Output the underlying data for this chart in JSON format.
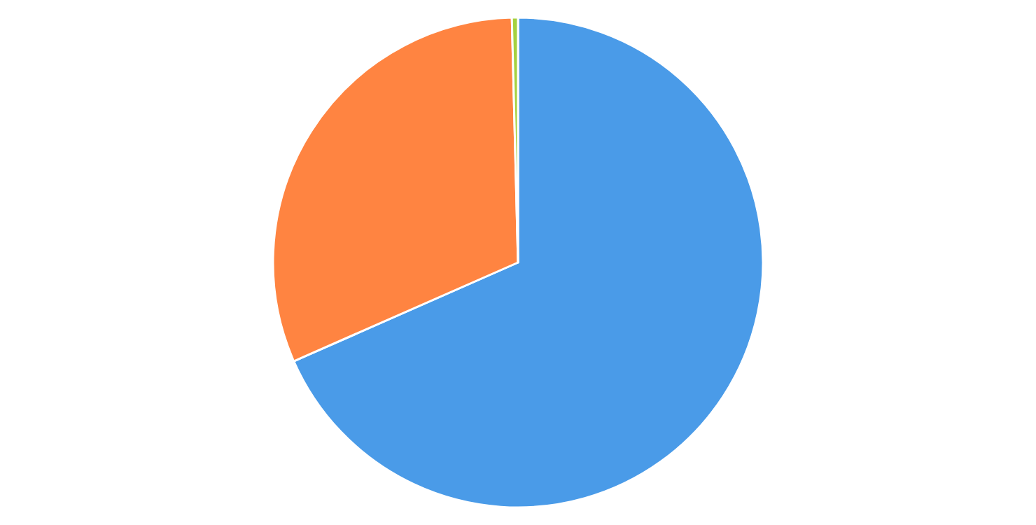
{
  "chart_data": {
    "type": "pie",
    "categories": [
      null,
      null,
      null
    ],
    "values": [
      68.4,
      31.2,
      0.4
    ],
    "colors": [
      "#4a9be8",
      "#ff8441",
      "#a5d13f"
    ]
  }
}
